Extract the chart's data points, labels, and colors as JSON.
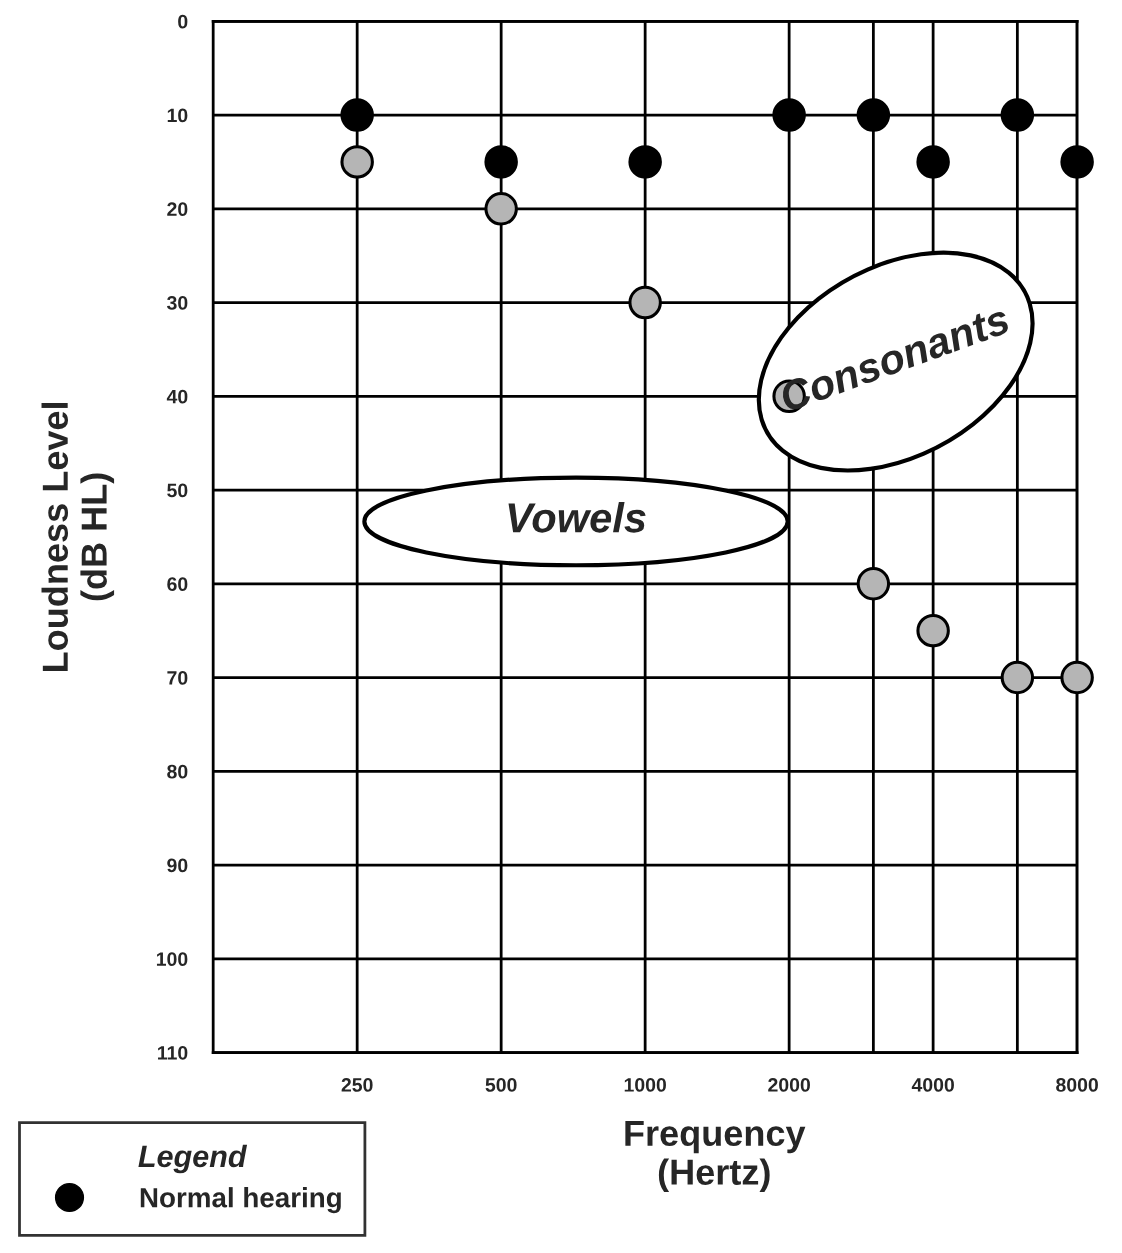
{
  "chart_data": {
    "type": "scatter",
    "xlabel": "Frequency\n(Hertz)",
    "ylabel": "Loudness Level\n(dB HL)",
    "legend_title": "Legend",
    "x": [
      250,
      500,
      1000,
      2000,
      3000,
      4000,
      6000,
      8000
    ],
    "series": [
      {
        "name": "Normal hearing",
        "color": "#000000",
        "values": [
          10,
          15,
          15,
          10,
          10,
          15,
          10,
          15
        ]
      },
      {
        "color": "#b5b5b5",
        "values": [
          15,
          20,
          30,
          40,
          60,
          65,
          70,
          70
        ]
      }
    ],
    "log": "x",
    "xlim": [
      125,
      8000
    ],
    "xticks": [
      250,
      500,
      1000,
      2000,
      {
        "value": 3000,
        "label": null
      },
      4000,
      {
        "value": 6000,
        "label": null
      },
      8000
    ],
    "ylim": [
      110,
      0
    ],
    "yticks": [
      0,
      10,
      20,
      30,
      40,
      50,
      60,
      70,
      80,
      90,
      100,
      110
    ],
    "annotations": [
      "Vowels",
      "Consonants"
    ],
    "grid": true,
    "legend": "bottom left",
    "marker": "circle"
  }
}
